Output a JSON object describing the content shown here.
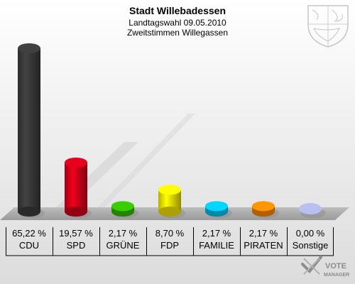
{
  "chart_data": {
    "type": "bar",
    "title": "Stadt Willebadessen",
    "subtitle": "Landtagswahl 09.05.2010",
    "subtitle2": "Zweitstimmen Willegassen",
    "categories": [
      "CDU",
      "SPD",
      "GRÜNE",
      "FDP",
      "FAMILIE",
      "PIRATEN",
      "Sonstige"
    ],
    "values": [
      65.22,
      19.57,
      2.17,
      8.7,
      2.17,
      2.17,
      0.0
    ],
    "value_labels": [
      "65,22 %",
      "19,57 %",
      "2,17 %",
      "8,70 %",
      "2,17 %",
      "2,17 %",
      "0,00 %"
    ],
    "colors": [
      "#3a3a3a",
      "#d4001a",
      "#33bb00",
      "#f5e600",
      "#00c3f0",
      "#ff8800",
      "#b8c0ef"
    ],
    "ylim": [
      0,
      65.22
    ]
  },
  "watermark": {
    "brand": "VOTE",
    "sub": "MANAGER"
  },
  "crest_icon": "nrw-coat-of-arms-icon"
}
